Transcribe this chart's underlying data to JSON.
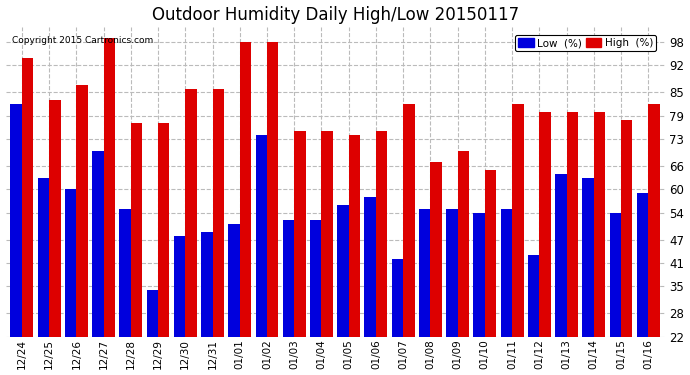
{
  "title": "Outdoor Humidity Daily High/Low 20150117",
  "copyright": "Copyright 2015 Cartronics.com",
  "categories": [
    "12/24",
    "12/25",
    "12/26",
    "12/27",
    "12/28",
    "12/29",
    "12/30",
    "12/31",
    "01/01",
    "01/02",
    "01/03",
    "01/04",
    "01/05",
    "01/06",
    "01/07",
    "01/08",
    "01/09",
    "01/10",
    "01/11",
    "01/12",
    "01/13",
    "01/14",
    "01/15",
    "01/16"
  ],
  "high_values": [
    94,
    83,
    87,
    99,
    77,
    77,
    86,
    86,
    98,
    98,
    75,
    75,
    74,
    75,
    82,
    67,
    70,
    65,
    82,
    80,
    80,
    80,
    78,
    82
  ],
  "low_values": [
    82,
    63,
    60,
    70,
    55,
    34,
    48,
    49,
    51,
    74,
    52,
    52,
    56,
    58,
    42,
    55,
    55,
    54,
    55,
    43,
    64,
    63,
    54,
    59
  ],
  "ymin": 22,
  "ymax": 100,
  "yticks": [
    22,
    28,
    35,
    41,
    47,
    54,
    60,
    66,
    73,
    79,
    85,
    92,
    98
  ],
  "bar_color_low": "#0000dd",
  "bar_color_high": "#dd0000",
  "background_color": "#ffffff",
  "grid_color": "#bbbbbb",
  "title_fontsize": 12,
  "legend_label_low": "Low  (%)",
  "legend_label_high": "High  (%)",
  "figwidth": 6.9,
  "figheight": 3.75,
  "dpi": 100
}
